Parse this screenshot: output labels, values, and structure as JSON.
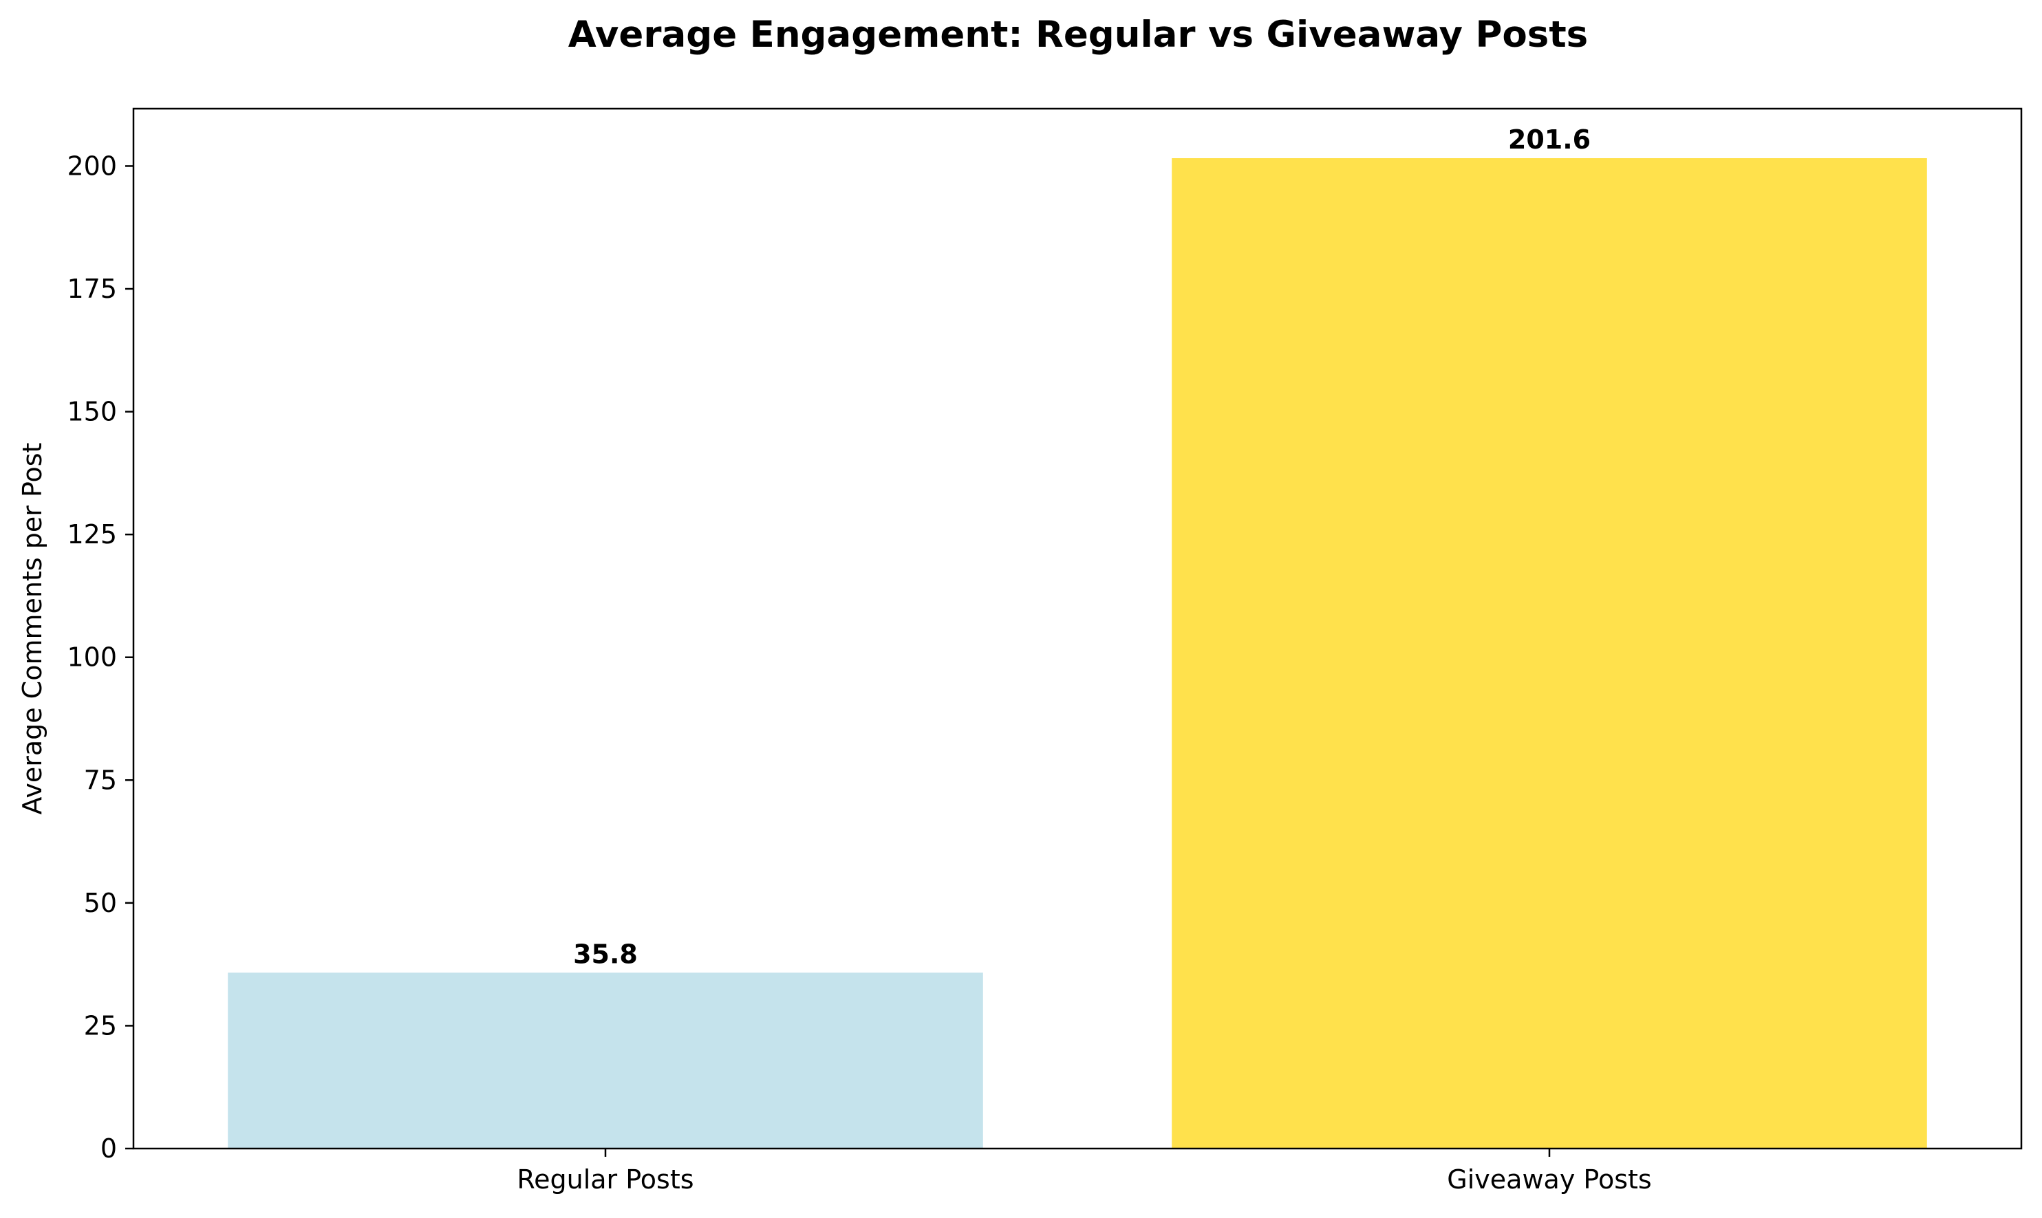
{
  "chart_data": {
    "type": "bar",
    "title": "Average Engagement: Regular vs Giveaway Posts",
    "xlabel": "",
    "ylabel": "Average Comments per Post",
    "categories": [
      "Regular Posts",
      "Giveaway Posts"
    ],
    "values": [
      35.8,
      201.6
    ],
    "value_labels": [
      "35.8",
      "201.6"
    ],
    "colors": [
      "#c5e3ec",
      "#ffe14c"
    ],
    "ylim": [
      0,
      211.68
    ],
    "yticks": [
      0,
      25,
      50,
      75,
      100,
      125,
      150,
      175,
      200
    ],
    "ytick_labels": [
      "0",
      "25",
      "50",
      "75",
      "100",
      "125",
      "150",
      "175",
      "200"
    ],
    "grid": false,
    "legend": "none"
  }
}
